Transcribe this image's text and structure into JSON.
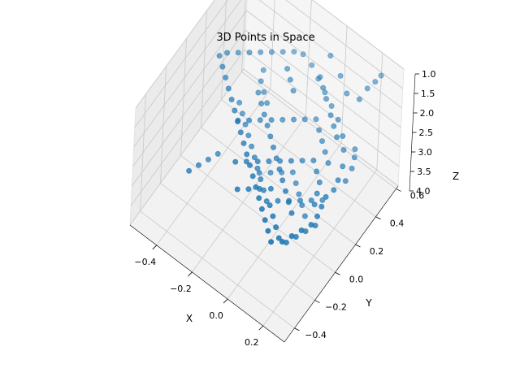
{
  "chart_data": {
    "type": "scatter",
    "title": "3D Points in Space",
    "xlabel": "X",
    "ylabel": "Y",
    "zlabel": "Z",
    "x_ticks": [
      -0.4,
      -0.2,
      0.0,
      0.2
    ],
    "y_ticks": [
      -0.4,
      -0.2,
      0.0,
      0.2,
      0.4,
      0.6
    ],
    "z_ticks": [
      1.0,
      1.5,
      2.0,
      2.5,
      3.0,
      3.5,
      4.0
    ],
    "x_tick_labels": [
      "−0.4",
      "−0.2",
      "0.0",
      "0.2"
    ],
    "y_tick_labels": [
      "−0.4",
      "−0.2",
      "0.0",
      "0.2",
      "0.4",
      "0.6"
    ],
    "z_tick_labels": [
      "1.0",
      "1.5",
      "2.0",
      "2.5",
      "3.0",
      "3.5",
      "4.0"
    ],
    "xlim": [
      -0.55,
      0.32
    ],
    "ylim": [
      -0.5,
      0.62
    ],
    "zlim": [
      1.0,
      4.0
    ],
    "z_inverted": true,
    "color": "#1f77b4",
    "series": [
      {
        "points": [
          [
            -0.48,
            0.3,
            2.2
          ],
          [
            -0.44,
            0.34,
            2.2
          ],
          [
            -0.4,
            0.38,
            2.2
          ],
          [
            -0.36,
            0.42,
            2.2
          ],
          [
            -0.32,
            0.46,
            2.2
          ],
          [
            -0.28,
            0.5,
            2.2
          ],
          [
            -0.24,
            0.54,
            2.2
          ],
          [
            -0.5,
            0.26,
            2.2
          ],
          [
            -0.46,
            0.22,
            2.2
          ],
          [
            -0.42,
            0.18,
            2.2
          ],
          [
            -0.38,
            0.14,
            2.2
          ],
          [
            -0.34,
            0.1,
            2.2
          ],
          [
            -0.3,
            0.06,
            2.2
          ],
          [
            -0.26,
            0.02,
            2.2
          ],
          [
            -0.22,
            -0.02,
            2.2
          ],
          [
            -0.18,
            -0.06,
            2.2
          ],
          [
            -0.14,
            -0.1,
            2.2
          ],
          [
            -0.1,
            -0.14,
            2.2
          ],
          [
            -0.06,
            -0.18,
            2.2
          ],
          [
            -0.02,
            -0.22,
            2.2
          ],
          [
            0.02,
            -0.26,
            2.2
          ],
          [
            0.06,
            -0.3,
            2.2
          ],
          [
            0.1,
            -0.34,
            2.2
          ],
          [
            0.14,
            -0.38,
            2.2
          ],
          [
            0.18,
            -0.42,
            2.2
          ],
          [
            0.22,
            -0.38,
            2.2
          ],
          [
            0.24,
            -0.32,
            2.2
          ],
          [
            0.26,
            -0.26,
            2.2
          ],
          [
            0.28,
            -0.2,
            2.2
          ],
          [
            0.28,
            -0.14,
            2.2
          ],
          [
            0.27,
            -0.08,
            2.2
          ],
          [
            0.26,
            -0.02,
            2.2
          ],
          [
            -0.2,
            0.56,
            2.2
          ],
          [
            -0.14,
            0.54,
            2.2
          ],
          [
            -0.08,
            0.5,
            2.2
          ],
          [
            -0.02,
            0.46,
            2.2
          ],
          [
            0.04,
            0.42,
            2.2
          ],
          [
            0.1,
            0.38,
            2.2
          ],
          [
            0.16,
            0.32,
            2.2
          ],
          [
            0.2,
            0.26,
            2.2
          ],
          [
            0.24,
            0.18,
            2.2
          ],
          [
            0.26,
            0.1,
            2.2
          ],
          [
            0.27,
            0.04,
            2.2
          ],
          [
            -0.3,
            0.3,
            2.6
          ],
          [
            -0.26,
            0.26,
            2.6
          ],
          [
            -0.22,
            0.22,
            2.6
          ],
          [
            -0.18,
            0.18,
            2.6
          ],
          [
            -0.14,
            0.14,
            2.6
          ],
          [
            -0.1,
            0.1,
            2.6
          ],
          [
            -0.06,
            0.06,
            2.6
          ],
          [
            -0.02,
            0.02,
            2.6
          ],
          [
            0.02,
            -0.02,
            2.6
          ],
          [
            0.06,
            -0.06,
            2.6
          ],
          [
            0.1,
            -0.1,
            2.6
          ],
          [
            0.14,
            -0.14,
            2.6
          ],
          [
            -0.3,
            0.1,
            2.6
          ],
          [
            -0.26,
            0.14,
            2.6
          ],
          [
            -0.22,
            0.18,
            2.6
          ],
          [
            -0.18,
            0.22,
            2.6
          ],
          [
            -0.14,
            0.26,
            2.6
          ],
          [
            -0.1,
            0.3,
            2.6
          ],
          [
            -0.06,
            0.34,
            2.6
          ],
          [
            -0.02,
            0.38,
            2.6
          ],
          [
            0.02,
            0.34,
            2.6
          ],
          [
            0.06,
            0.3,
            2.6
          ],
          [
            0.1,
            0.26,
            2.6
          ],
          [
            0.14,
            0.22,
            2.6
          ],
          [
            -0.2,
            -0.1,
            2.6
          ],
          [
            -0.16,
            -0.06,
            2.6
          ],
          [
            -0.12,
            -0.02,
            2.6
          ],
          [
            -0.08,
            0.02,
            2.6
          ],
          [
            -0.04,
            0.06,
            2.6
          ],
          [
            0.0,
            0.1,
            2.6
          ],
          [
            0.04,
            0.14,
            2.6
          ],
          [
            0.08,
            0.18,
            2.6
          ],
          [
            0.12,
            0.14,
            2.6
          ],
          [
            0.16,
            0.1,
            2.6
          ],
          [
            0.18,
            0.04,
            2.6
          ],
          [
            0.2,
            -0.02,
            2.6
          ],
          [
            -0.12,
            -0.22,
            2.6
          ],
          [
            -0.08,
            -0.18,
            2.6
          ],
          [
            -0.04,
            -0.14,
            2.6
          ],
          [
            0.0,
            -0.1,
            2.6
          ],
          [
            0.04,
            -0.18,
            2.6
          ],
          [
            0.08,
            -0.22,
            2.6
          ],
          [
            0.12,
            -0.26,
            2.6
          ],
          [
            0.16,
            -0.3,
            2.6
          ],
          [
            -0.4,
            0.3,
            3.2
          ],
          [
            -0.36,
            0.26,
            3.2
          ],
          [
            -0.32,
            0.22,
            3.2
          ],
          [
            -0.28,
            0.18,
            3.2
          ],
          [
            -0.24,
            0.14,
            3.2
          ],
          [
            -0.2,
            0.1,
            3.2
          ],
          [
            -0.16,
            0.06,
            3.2
          ],
          [
            -0.12,
            0.02,
            3.2
          ],
          [
            -0.08,
            -0.02,
            3.2
          ],
          [
            -0.04,
            -0.06,
            3.2
          ],
          [
            0.0,
            -0.02,
            3.2
          ],
          [
            0.04,
            0.02,
            3.2
          ],
          [
            0.08,
            0.06,
            3.2
          ],
          [
            0.12,
            0.1,
            3.2
          ],
          [
            0.16,
            0.14,
            3.2
          ],
          [
            -0.02,
            0.2,
            3.6
          ],
          [
            0.02,
            0.16,
            3.6
          ],
          [
            0.06,
            0.12,
            3.6
          ],
          [
            0.1,
            0.08,
            3.6
          ],
          [
            -0.06,
            0.24,
            3.6
          ],
          [
            -0.1,
            0.2,
            3.6
          ],
          [
            -0.14,
            0.16,
            3.6
          ],
          [
            -0.18,
            0.12,
            3.6
          ],
          [
            0.1,
            0.3,
            1.8
          ],
          [
            0.14,
            0.26,
            1.8
          ],
          [
            0.18,
            0.22,
            1.8
          ],
          [
            0.04,
            0.36,
            1.8
          ],
          [
            0.0,
            0.4,
            1.8
          ],
          [
            -0.04,
            0.44,
            1.8
          ],
          [
            0.2,
            0.4,
            1.4
          ],
          [
            0.22,
            0.44,
            1.2
          ],
          [
            0.24,
            0.48,
            1.1
          ],
          [
            0.25,
            0.52,
            1.05
          ],
          [
            -0.02,
            0.5,
            1.4
          ],
          [
            0.06,
            0.46,
            1.5
          ],
          [
            0.12,
            0.42,
            1.6
          ],
          [
            -0.2,
            0.4,
            2.0
          ],
          [
            -0.16,
            0.36,
            2.0
          ],
          [
            -0.12,
            0.32,
            2.0
          ],
          [
            -0.36,
            0.46,
            2.8
          ],
          [
            -0.34,
            0.4,
            2.8
          ],
          [
            -0.3,
            0.36,
            2.8
          ],
          [
            -0.26,
            0.32,
            2.8
          ],
          [
            0.2,
            -0.1,
            3.0
          ],
          [
            0.18,
            -0.16,
            3.0
          ],
          [
            0.16,
            -0.22,
            3.0
          ],
          [
            0.22,
            -0.04,
            3.0
          ],
          [
            -0.46,
            -0.08,
            3.8
          ],
          [
            -0.44,
            -0.02,
            3.8
          ],
          [
            -0.42,
            0.04,
            3.8
          ],
          [
            -0.4,
            0.1,
            3.8
          ],
          [
            0.24,
            0.3,
            2.4
          ],
          [
            0.22,
            0.34,
            2.4
          ],
          [
            0.26,
            0.24,
            2.4
          ],
          [
            0.27,
            0.16,
            2.4
          ]
        ]
      }
    ]
  }
}
